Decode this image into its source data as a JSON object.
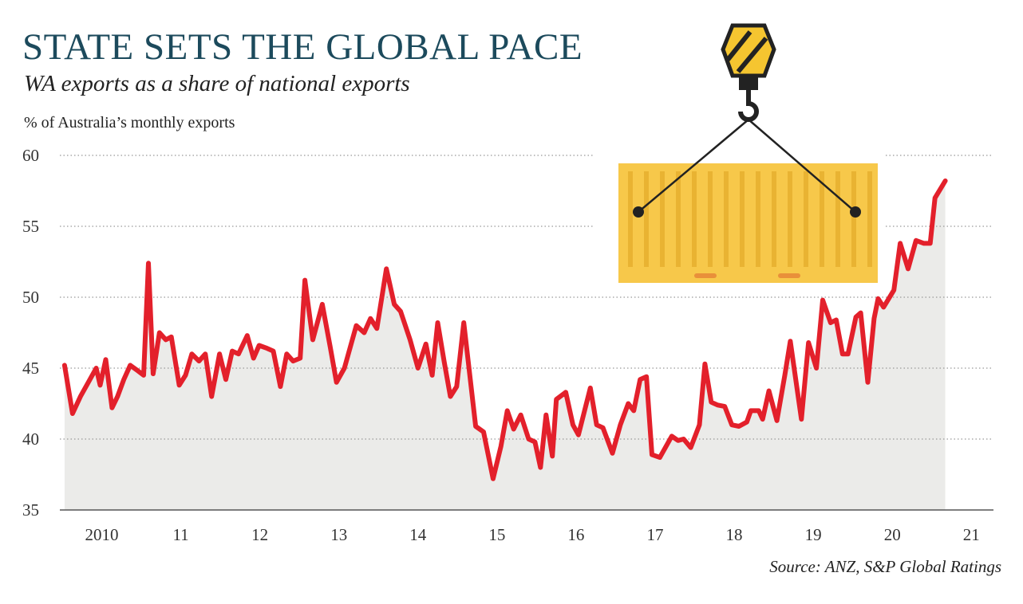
{
  "chart_data": {
    "type": "line",
    "title": "STATE SETS THE GLOBAL PACE",
    "subtitle": "WA exports as a share of national exports",
    "y_axis_label": "% of Australia’s monthly exports",
    "source": "Source: ANZ, S&P Global Ratings",
    "color": "#e3202b",
    "area_color": "#ebebe9",
    "grid": true,
    "xlim": [
      2009.97,
      2021.78
    ],
    "ylim": [
      35,
      60
    ],
    "yticks": [
      35,
      40,
      45,
      50,
      55,
      60
    ],
    "xticks": [
      {
        "value": 2010.5,
        "label": "2010"
      },
      {
        "value": 2011.5,
        "label": "11"
      },
      {
        "value": 2012.5,
        "label": "12"
      },
      {
        "value": 2013.5,
        "label": "13"
      },
      {
        "value": 2014.5,
        "label": "14"
      },
      {
        "value": 2015.5,
        "label": "15"
      },
      {
        "value": 2016.5,
        "label": "16"
      },
      {
        "value": 2017.5,
        "label": "17"
      },
      {
        "value": 2018.5,
        "label": "18"
      },
      {
        "value": 2019.5,
        "label": "19"
      },
      {
        "value": 2020.5,
        "label": "20"
      },
      {
        "value": 2021.5,
        "label": "21"
      }
    ],
    "x": [
      2010.03,
      2010.13,
      2010.23,
      2010.33,
      2010.43,
      2010.48,
      2010.55,
      2010.63,
      2010.7,
      2010.78,
      2010.86,
      2010.96,
      2011.03,
      2011.09,
      2011.15,
      2011.23,
      2011.31,
      2011.38,
      2011.48,
      2011.56,
      2011.64,
      2011.73,
      2011.81,
      2011.89,
      2011.99,
      2012.07,
      2012.15,
      2012.23,
      2012.34,
      2012.42,
      2012.49,
      2012.59,
      2012.67,
      2012.76,
      2012.84,
      2012.92,
      2013.01,
      2013.07,
      2013.17,
      2013.29,
      2013.39,
      2013.47,
      2013.57,
      2013.72,
      2013.82,
      2013.9,
      2013.98,
      2014.1,
      2014.2,
      2014.28,
      2014.4,
      2014.5,
      2014.6,
      2014.68,
      2014.75,
      2014.83,
      2014.91,
      2014.99,
      2015.08,
      2015.23,
      2015.33,
      2015.45,
      2015.55,
      2015.63,
      2015.71,
      2015.8,
      2015.9,
      2015.98,
      2016.05,
      2016.12,
      2016.2,
      2016.25,
      2016.37,
      2016.46,
      2016.53,
      2016.68,
      2016.76,
      2016.84,
      2016.96,
      2017.06,
      2017.16,
      2017.23,
      2017.31,
      2017.39,
      2017.46,
      2017.56,
      2017.71,
      2017.79,
      2017.86,
      2017.95,
      2018.06,
      2018.13,
      2018.21,
      2018.29,
      2018.38,
      2018.47,
      2018.56,
      2018.66,
      2018.71,
      2018.81,
      2018.86,
      2018.94,
      2019.04,
      2019.14,
      2019.21,
      2019.35,
      2019.44,
      2019.54,
      2019.62,
      2019.72,
      2019.79,
      2019.87,
      2019.94,
      2020.04,
      2020.1,
      2020.19,
      2020.27,
      2020.32,
      2020.39,
      2020.52,
      2020.6,
      2020.7,
      2020.8,
      2020.9,
      2020.98,
      2021.04,
      2021.17
    ],
    "values": [
      45.2,
      41.8,
      43,
      44,
      45,
      43.8,
      45.6,
      42.2,
      43,
      44.2,
      45.2,
      44.8,
      44.5,
      52.4,
      44.6,
      47.5,
      47,
      47.2,
      43.8,
      44.5,
      46,
      45.5,
      46,
      43,
      46,
      44.2,
      46.2,
      46,
      47.3,
      45.7,
      46.6,
      46.4,
      46.2,
      43.7,
      46,
      45.5,
      45.7,
      51.2,
      47,
      49.5,
      46.5,
      44,
      45,
      48,
      47.5,
      48.5,
      47.8,
      52,
      49.5,
      49,
      47,
      45,
      46.7,
      44.5,
      48.2,
      45.5,
      43,
      43.7,
      48.2,
      40.9,
      40.5,
      37.2,
      39.5,
      42,
      40.7,
      41.7,
      40,
      39.8,
      38,
      41.7,
      38.8,
      42.8,
      43.3,
      41,
      40.3,
      43.6,
      41,
      40.8,
      39,
      41,
      42.5,
      42,
      44.2,
      44.4,
      38.9,
      38.7,
      40.2,
      39.9,
      40,
      39.4,
      41,
      45.3,
      42.6,
      42.4,
      42.3,
      41,
      40.9,
      41.2,
      42,
      42,
      41.4,
      43.4,
      41.3,
      44.5,
      46.9,
      41.4,
      46.8,
      45,
      49.8,
      48.2,
      48.4,
      46,
      46,
      48.6,
      48.9,
      44,
      48.5,
      49.9,
      49.3,
      50.5,
      53.8,
      52,
      54,
      53.8,
      53.8,
      57,
      58.2
    ]
  }
}
